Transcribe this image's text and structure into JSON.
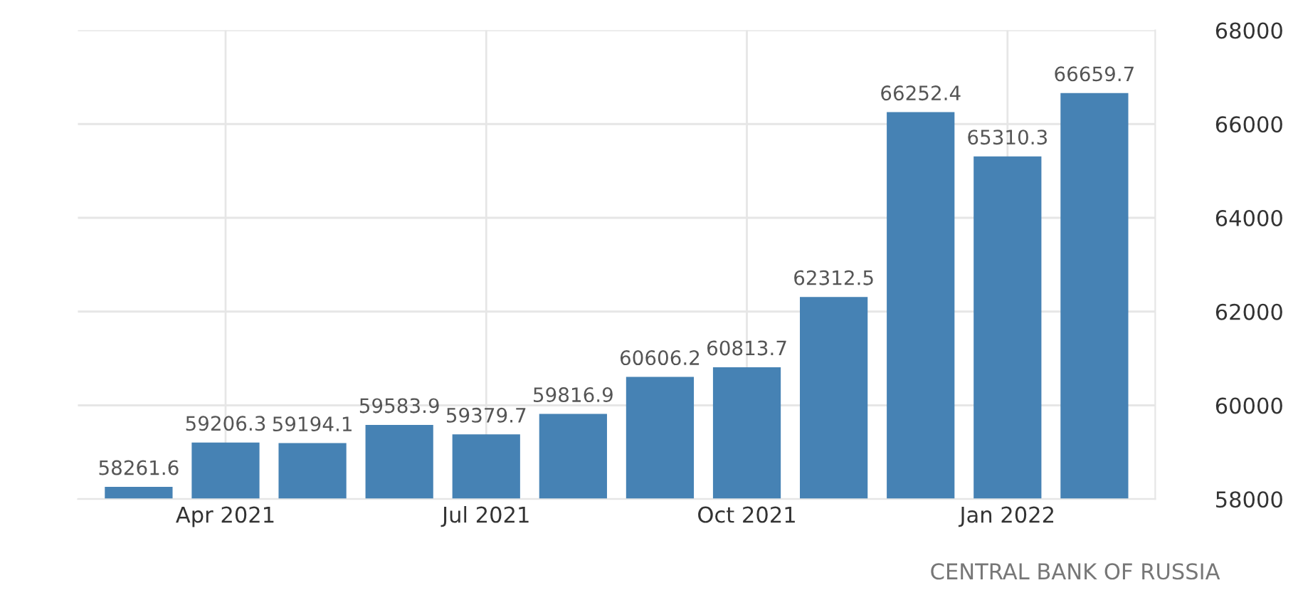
{
  "chart_data": {
    "type": "bar",
    "categories": [
      null,
      "Apr 2021",
      null,
      null,
      "Jul 2021",
      null,
      null,
      "Oct 2021",
      null,
      null,
      "Jan 2022",
      null
    ],
    "values": [
      58261.6,
      59206.3,
      59194.1,
      59583.9,
      59379.7,
      59816.9,
      60606.2,
      60813.7,
      62312.5,
      66252.4,
      65310.3,
      66659.7
    ],
    "color": "#4682b4",
    "ylim": [
      58000,
      68000
    ],
    "yticks": [
      58000,
      60000,
      62000,
      64000,
      66000,
      68000
    ],
    "grid": true,
    "data_labels": true,
    "annotations": [
      "CENTRAL BANK OF RUSSIA"
    ]
  }
}
